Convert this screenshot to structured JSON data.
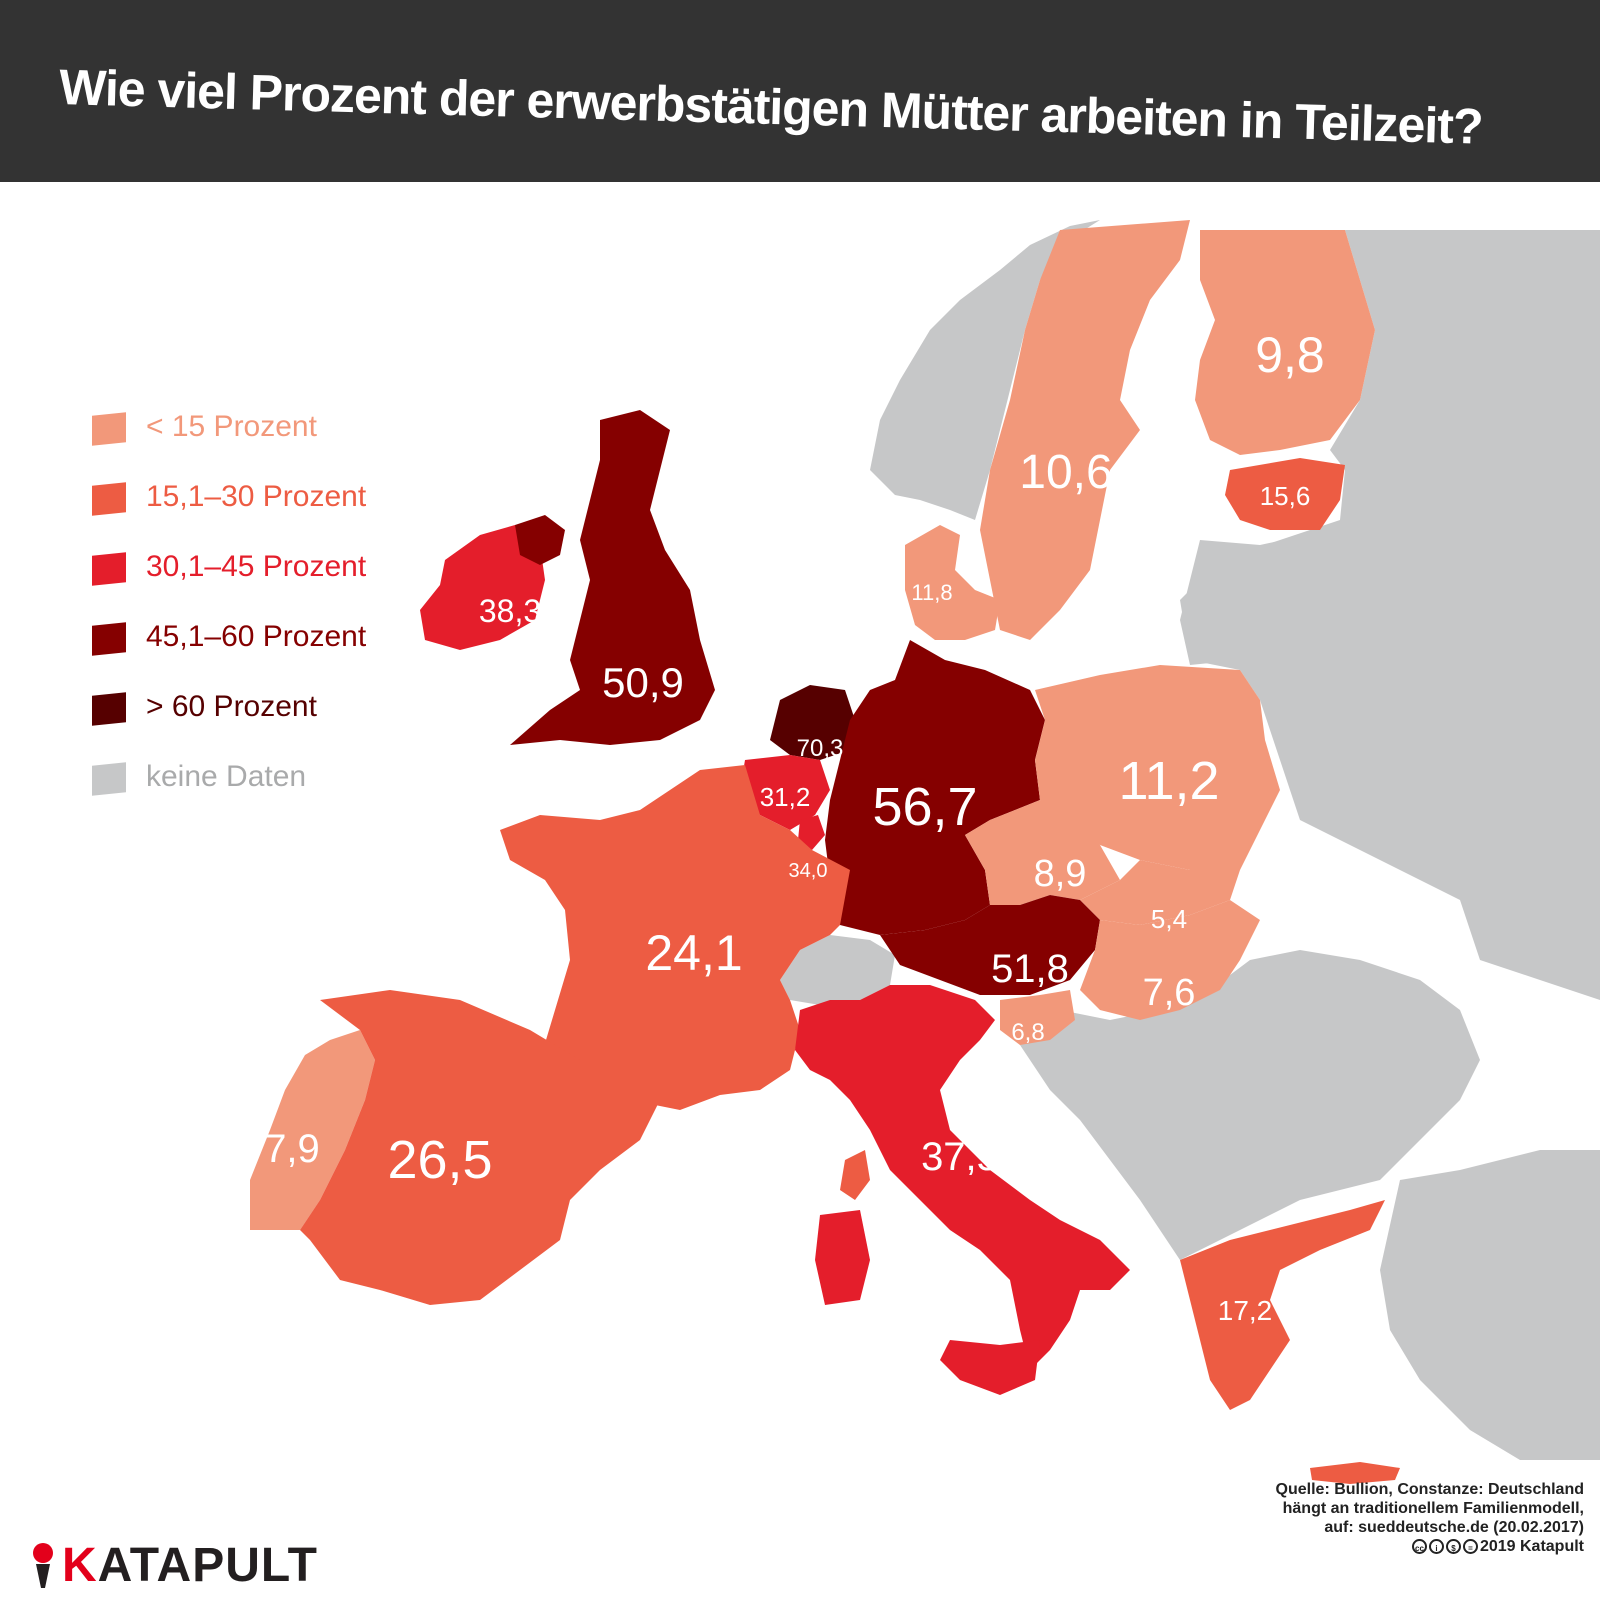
{
  "title": "Wie viel Prozent der erwerbstätigen Mütter arbeiten in Teilzeit?",
  "colors": {
    "header_bg": "#333333",
    "no_data": "#c6c7c8",
    "lt15": "#f2987a",
    "c15_30": "#ed5c43",
    "c30_45": "#e41e2b",
    "c45_60": "#850000",
    "gt60": "#560000"
  },
  "legend": [
    {
      "label": "< 15 Prozent",
      "color": "#f2987a"
    },
    {
      "label": "15,1–30 Prozent",
      "color": "#ed5c43"
    },
    {
      "label": "30,1–45 Prozent",
      "color": "#e41e2b"
    },
    {
      "label": "45,1–60 Prozent",
      "color": "#850000"
    },
    {
      "label": "> 60 Prozent",
      "color": "#560000"
    },
    {
      "label": "keine Daten",
      "color": "#c6c7c8"
    }
  ],
  "countries": {
    "finland": "9,8",
    "sweden": "10,6",
    "estonia": "15,6",
    "denmark": "11,8",
    "ireland": "38,3",
    "uk": "50,9",
    "netherlands": "70,3",
    "belgium": "31,2",
    "luxembourg": "34,0",
    "germany": "56,7",
    "poland": "11,2",
    "czechia": "8,9",
    "slovakia": "5,4",
    "austria": "51,8",
    "hungary": "7,6",
    "slovenia": "6,8",
    "france": "24,1",
    "portugal": "7,9",
    "spain": "26,5",
    "italy": "37,5",
    "greece": "17,2"
  },
  "source": {
    "line1": "Quelle: Bullion, Constanze: Deutschland",
    "line2": "hängt an traditionellem Familienmodell,",
    "line3": "auf: sueddeutsche.de (20.02.2017)",
    "copyright": "2019 Katapult"
  },
  "logo": {
    "first_letter": "K",
    "rest": "ATAPULT"
  }
}
